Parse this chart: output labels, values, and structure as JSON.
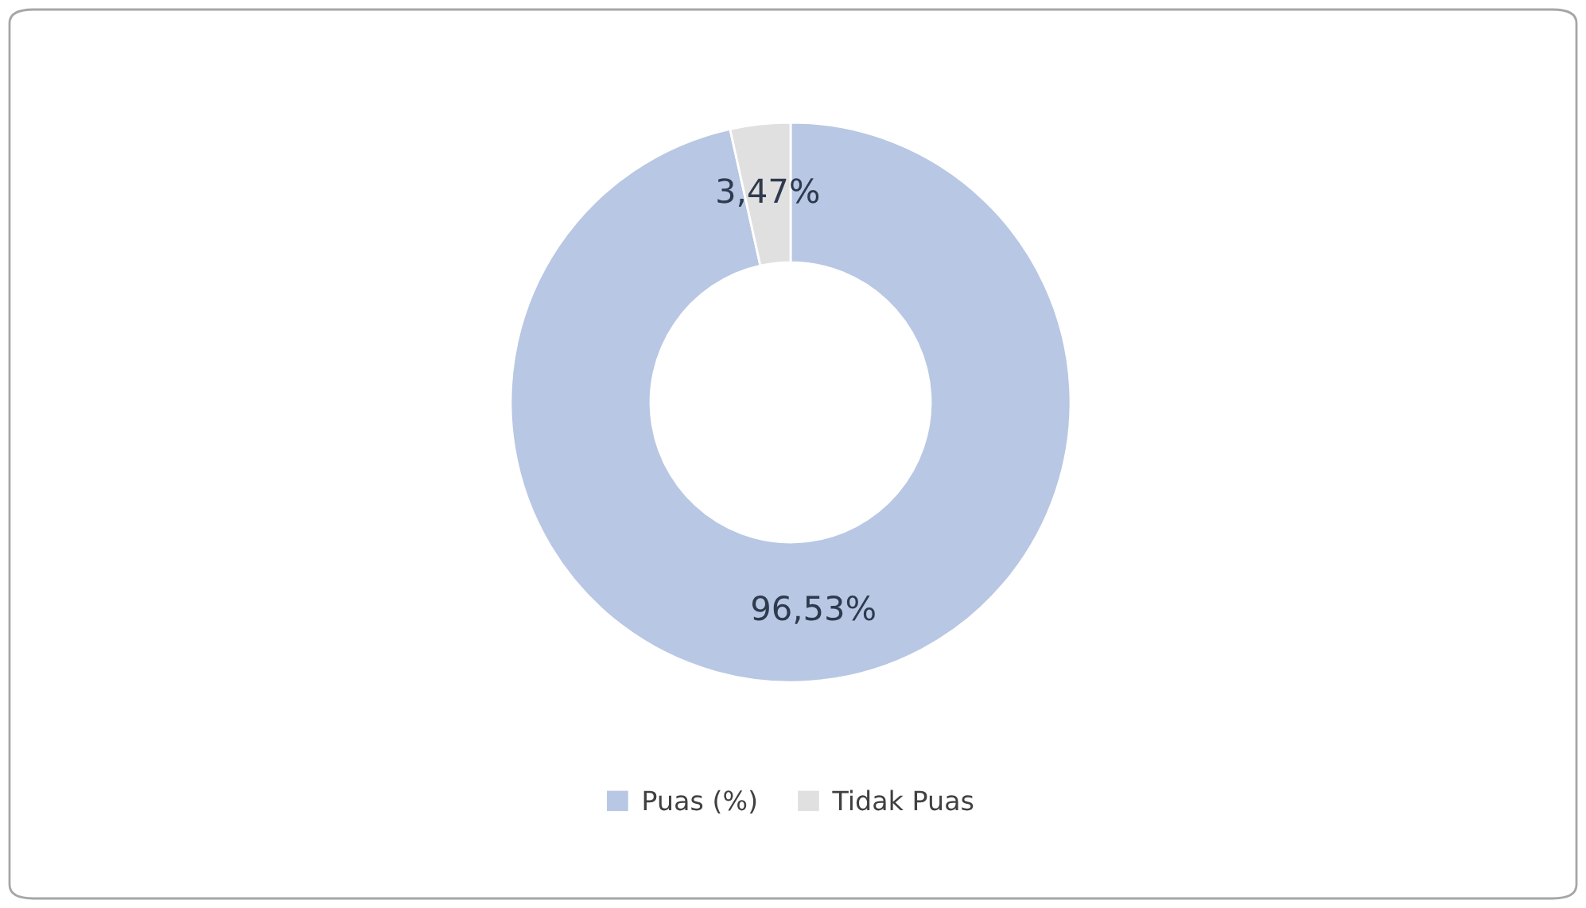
{
  "chart_data": {
    "type": "donut",
    "categories": [
      "Puas (%)",
      "Tidak Puas"
    ],
    "values": [
      96.53,
      3.47
    ],
    "colors": [
      "#b8c7e3",
      "#e0e0e0"
    ],
    "value_labels": [
      "96,53%",
      "3,47%"
    ],
    "legend": "bottom"
  }
}
